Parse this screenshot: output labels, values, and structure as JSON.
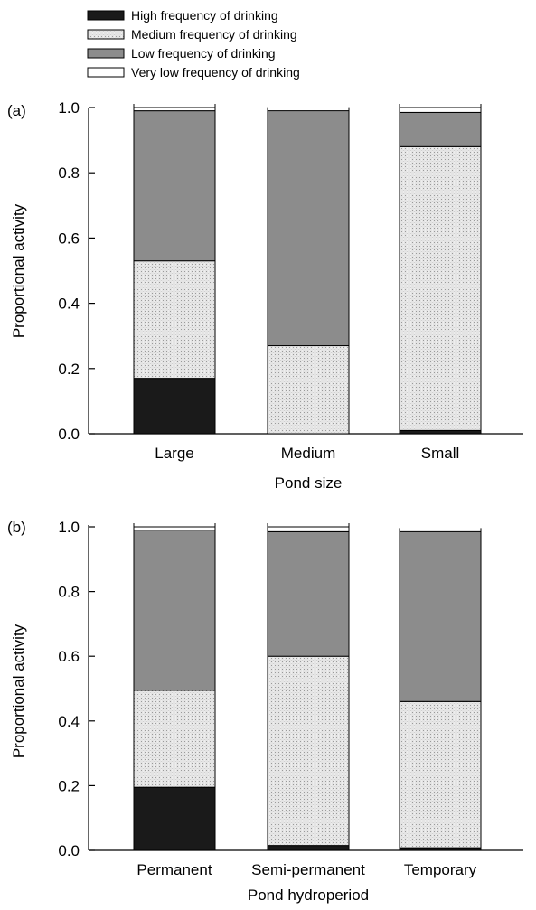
{
  "legend": {
    "placement": "top-left",
    "items": [
      {
        "key": "high",
        "label": "High frequency of drinking",
        "color": "#1a1a1a",
        "pattern": "solid"
      },
      {
        "key": "medium",
        "label": "Medium frequency of drinking",
        "color": "#dcdcdc",
        "pattern": "stipple"
      },
      {
        "key": "low",
        "label": "Low frequency of drinking",
        "color": "#8c8c8c",
        "pattern": "solid"
      },
      {
        "key": "verylow",
        "label": "Very low frequency of drinking",
        "color": "#ffffff",
        "pattern": "solid"
      }
    ]
  },
  "chart_data": [
    {
      "type": "bar",
      "stacked": true,
      "panel_label": "(a)",
      "xlabel": "Pond size",
      "ylabel": "Proportional activity",
      "ylim": [
        0,
        1
      ],
      "yticks": [
        "0.0",
        "0.2",
        "0.4",
        "0.6",
        "0.8",
        "1.0"
      ],
      "grid": false,
      "categories": [
        "Large",
        "Medium",
        "Small"
      ],
      "series": [
        {
          "name": "High frequency of drinking",
          "values": [
            0.17,
            0.0,
            0.01
          ]
        },
        {
          "name": "Medium frequency of drinking",
          "values": [
            0.36,
            0.27,
            0.87
          ]
        },
        {
          "name": "Low frequency of drinking",
          "values": [
            0.46,
            0.72,
            0.105
          ]
        },
        {
          "name": "Very low frequency of drinking",
          "values": [
            0.01,
            0.0,
            0.015
          ]
        }
      ]
    },
    {
      "type": "bar",
      "stacked": true,
      "panel_label": "(b)",
      "xlabel": "Pond hydroperiod",
      "ylabel": "Proportional activity",
      "ylim": [
        0,
        1
      ],
      "yticks": [
        "0.0",
        "0.2",
        "0.4",
        "0.6",
        "0.8",
        "1.0"
      ],
      "grid": false,
      "categories": [
        "Permanent",
        "Semi-permanent",
        "Temporary"
      ],
      "series": [
        {
          "name": "High frequency of drinking",
          "values": [
            0.195,
            0.015,
            0.008
          ]
        },
        {
          "name": "Medium frequency of drinking",
          "values": [
            0.3,
            0.585,
            0.452
          ]
        },
        {
          "name": "Low frequency of drinking",
          "values": [
            0.495,
            0.385,
            0.525
          ]
        },
        {
          "name": "Very low frequency of drinking",
          "values": [
            0.01,
            0.015,
            0.0
          ]
        }
      ]
    }
  ]
}
